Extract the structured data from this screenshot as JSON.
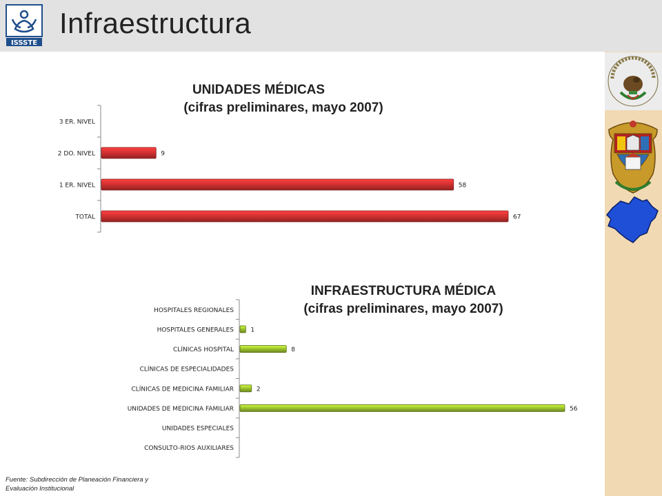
{
  "header": {
    "title": "Infraestructura",
    "logo_text": "ISSSTE"
  },
  "emblems": [
    "mexico-coat-of-arms",
    "michoacan-coat-of-arms",
    "michoacan-map"
  ],
  "chart_data": [
    {
      "type": "bar",
      "orientation": "horizontal",
      "title": "UNIDADES MÉDICAS",
      "subtitle": "(cifras preliminares, mayo 2007)",
      "categories": [
        "3 ER. NIVEL",
        "2 DO. NIVEL",
        "1 ER. NIVEL",
        "TOTAL"
      ],
      "values": [
        0,
        9,
        58,
        67
      ],
      "data_labels": [
        "",
        "9",
        "58",
        "67"
      ],
      "color": "#d03030",
      "xlim": [
        0,
        67
      ],
      "grid": false,
      "legend": "none"
    },
    {
      "type": "bar",
      "orientation": "horizontal",
      "title": "INFRAESTRUCTURA MÉDICA",
      "subtitle": "(cifras preliminares, mayo 2007)",
      "categories": [
        "HOSPITALES REGIONALES",
        "HOSPITALES GENERALES",
        "CLÍNICAS HOSPITAL",
        "CLÍNICAS DE ESPECIALIDADES",
        "CLÍNICAS DE MEDICINA FAMILIAR",
        "UNIDADES DE MEDICINA FAMILIAR",
        "UNIDADES   ESPECIALES",
        "CONSULTO-RIOS AUXILIARES"
      ],
      "values": [
        0,
        1,
        8,
        0,
        2,
        56,
        0,
        0
      ],
      "data_labels": [
        "",
        "1",
        "8",
        "",
        "2",
        "56",
        "",
        ""
      ],
      "color": "#9bc12e",
      "xlim": [
        0,
        56
      ],
      "grid": false,
      "legend": "none"
    }
  ],
  "footer": {
    "line1": "Fuente: Subdirección de Planeación Financiera y",
    "line2": "Evaluación Institucional"
  }
}
